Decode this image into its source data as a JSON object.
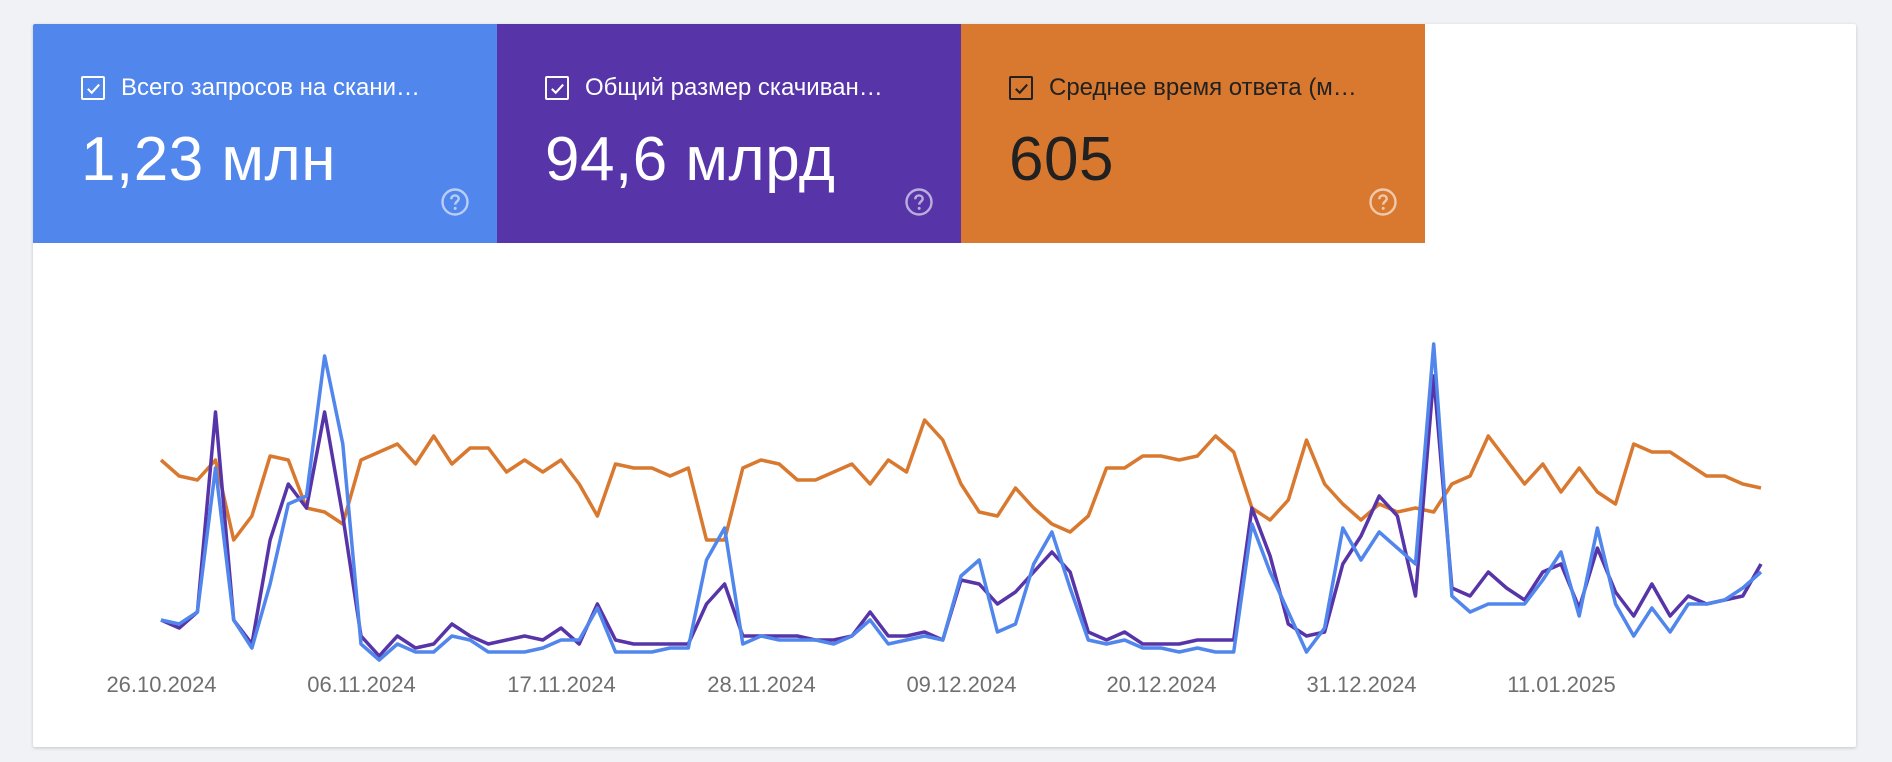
{
  "tiles": [
    {
      "label": "Всего запросов на скани…",
      "value": "1,23 млн",
      "checked": true,
      "color": "#5186ec",
      "text_color": "#ffffff",
      "help_icon": "help-circle-icon"
    },
    {
      "label": "Общий размер скачиван…",
      "value": "94,6 млрд",
      "checked": true,
      "color": "#5735a9",
      "text_color": "#ffffff",
      "help_icon": "help-circle-icon"
    },
    {
      "label": "Среднее время ответа (м…",
      "value": "605",
      "checked": true,
      "color": "#d97930",
      "text_color": "#212121",
      "help_icon": "help-circle-icon"
    }
  ],
  "chart_data": {
    "type": "line",
    "title": "",
    "xlabel": "",
    "ylabel": "",
    "grid": false,
    "legend": "none",
    "x_tick_labels": [
      "26.10.2024",
      "06.11.2024",
      "17.11.2024",
      "28.11.2024",
      "09.12.2024",
      "20.12.2024",
      "31.12.2024",
      "11.01.2025"
    ],
    "x_start": "26.10.2024",
    "x_end": "22.01.2025",
    "point_count": 89,
    "y_scale": "relative",
    "ylim": [
      0,
      100
    ],
    "series": [
      {
        "key": "response_time",
        "color": "#d97930",
        "values": [
          56,
          52,
          51,
          56,
          36,
          42,
          57,
          56,
          44,
          43,
          40,
          56,
          58,
          60,
          55,
          62,
          55,
          59,
          59,
          53,
          56,
          53,
          56,
          50,
          42,
          55,
          54,
          54,
          52,
          54,
          36,
          36,
          54,
          56,
          55,
          51,
          51,
          53,
          55,
          50,
          56,
          53,
          66,
          61,
          50,
          43,
          42,
          49,
          44,
          40,
          38,
          42,
          54,
          54,
          57,
          57,
          56,
          57,
          62,
          58,
          44,
          41,
          46,
          61,
          50,
          45,
          41,
          45,
          43,
          44,
          43,
          50,
          52,
          62,
          56,
          50,
          55,
          48,
          54,
          48,
          45,
          60,
          58,
          58,
          55,
          52,
          52,
          50,
          49
        ]
      },
      {
        "key": "download_size",
        "color": "#5735a9",
        "values": [
          16,
          14,
          18,
          68,
          16,
          10,
          36,
          50,
          44,
          68,
          42,
          12,
          7,
          12,
          9,
          10,
          15,
          12,
          10,
          11,
          12,
          11,
          14,
          10,
          20,
          11,
          10,
          10,
          10,
          10,
          20,
          25,
          12,
          12,
          12,
          12,
          11,
          11,
          12,
          18,
          12,
          12,
          13,
          11,
          26,
          25,
          20,
          23,
          28,
          33,
          28,
          13,
          11,
          13,
          10,
          10,
          10,
          11,
          11,
          11,
          44,
          32,
          15,
          12,
          13,
          30,
          37,
          47,
          42,
          22,
          77,
          24,
          22,
          28,
          24,
          21,
          28,
          30,
          19,
          34,
          23,
          17,
          25,
          17,
          22,
          20,
          21,
          22,
          30
        ]
      },
      {
        "key": "crawl_requests",
        "color": "#5186ec",
        "values": [
          16,
          15,
          18,
          54,
          16,
          9,
          25,
          45,
          47,
          82,
          60,
          10,
          6,
          10,
          8,
          8,
          12,
          11,
          8,
          8,
          8,
          9,
          11,
          11,
          19,
          8,
          8,
          8,
          9,
          9,
          31,
          39,
          10,
          12,
          11,
          11,
          11,
          10,
          12,
          16,
          10,
          11,
          12,
          11,
          27,
          31,
          13,
          15,
          30,
          38,
          24,
          11,
          10,
          11,
          9,
          9,
          8,
          9,
          8,
          8,
          40,
          28,
          18,
          8,
          14,
          39,
          31,
          38,
          34,
          30,
          85,
          22,
          18,
          20,
          20,
          20,
          26,
          33,
          17,
          39,
          20,
          12,
          19,
          13,
          20,
          20,
          21,
          24,
          28
        ]
      }
    ]
  }
}
